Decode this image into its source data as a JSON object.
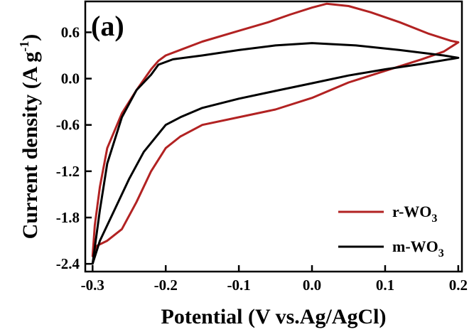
{
  "chart_data": {
    "type": "line",
    "panel_label": "(a)",
    "xlabel": "Potential (V vs.Ag/AgCl)",
    "ylabel": {
      "main": "Current density (A g",
      "superscript": "-1",
      "close": ")"
    },
    "xlim": [
      -0.31,
      0.205
    ],
    "ylim": [
      -2.5,
      1.0
    ],
    "x_ticks": [
      -0.3,
      -0.2,
      -0.1,
      0.0,
      0.1,
      0.2
    ],
    "x_tick_labels": [
      "-0.3",
      "-0.2",
      "-0.1",
      "0.0",
      "0.1",
      "0.2"
    ],
    "y_ticks": [
      0.6,
      0.0,
      -0.6,
      -1.2,
      -1.8,
      -2.4
    ],
    "y_tick_labels": [
      "0.6",
      "0.0",
      "-0.6",
      "-1.2",
      "-1.8",
      "-2.4"
    ],
    "legend_position": "bottom-right",
    "series": [
      {
        "name": "r-WO",
        "name_sub": "3",
        "color": "#b22222",
        "points": [
          [
            -0.3,
            -2.3
          ],
          [
            -0.295,
            -2.17
          ],
          [
            -0.28,
            -2.1
          ],
          [
            -0.26,
            -1.95
          ],
          [
            -0.24,
            -1.6
          ],
          [
            -0.22,
            -1.2
          ],
          [
            -0.2,
            -0.9
          ],
          [
            -0.18,
            -0.75
          ],
          [
            -0.15,
            -0.6
          ],
          [
            -0.1,
            -0.5
          ],
          [
            -0.05,
            -0.4
          ],
          [
            0.0,
            -0.25
          ],
          [
            0.05,
            -0.05
          ],
          [
            0.1,
            0.1
          ],
          [
            0.15,
            0.25
          ],
          [
            0.18,
            0.35
          ],
          [
            0.2,
            0.47
          ],
          [
            0.19,
            0.49
          ],
          [
            0.16,
            0.58
          ],
          [
            0.12,
            0.73
          ],
          [
            0.08,
            0.86
          ],
          [
            0.05,
            0.94
          ],
          [
            0.02,
            0.97
          ],
          [
            0.0,
            0.92
          ],
          [
            -0.03,
            0.83
          ],
          [
            -0.06,
            0.73
          ],
          [
            -0.1,
            0.62
          ],
          [
            -0.15,
            0.48
          ],
          [
            -0.2,
            0.3
          ],
          [
            -0.21,
            0.23
          ],
          [
            -0.22,
            0.12
          ],
          [
            -0.24,
            -0.15
          ],
          [
            -0.26,
            -0.45
          ],
          [
            -0.28,
            -0.9
          ],
          [
            -0.29,
            -1.4
          ],
          [
            -0.297,
            -1.9
          ],
          [
            -0.3,
            -2.3
          ]
        ]
      },
      {
        "name": "m-WO",
        "name_sub": "3",
        "color": "#000000",
        "points": [
          [
            -0.3,
            -2.4
          ],
          [
            -0.29,
            -2.1
          ],
          [
            -0.27,
            -1.7
          ],
          [
            -0.25,
            -1.3
          ],
          [
            -0.23,
            -0.95
          ],
          [
            -0.2,
            -0.6
          ],
          [
            -0.18,
            -0.5
          ],
          [
            -0.15,
            -0.38
          ],
          [
            -0.1,
            -0.26
          ],
          [
            -0.05,
            -0.16
          ],
          [
            0.0,
            -0.06
          ],
          [
            0.05,
            0.04
          ],
          [
            0.1,
            0.12
          ],
          [
            0.15,
            0.19
          ],
          [
            0.2,
            0.27
          ],
          [
            0.18,
            0.3
          ],
          [
            0.12,
            0.37
          ],
          [
            0.06,
            0.43
          ],
          [
            0.0,
            0.46
          ],
          [
            -0.05,
            0.43
          ],
          [
            -0.1,
            0.37
          ],
          [
            -0.15,
            0.3
          ],
          [
            -0.19,
            0.25
          ],
          [
            -0.21,
            0.18
          ],
          [
            -0.22,
            0.05
          ],
          [
            -0.24,
            -0.15
          ],
          [
            -0.26,
            -0.5
          ],
          [
            -0.28,
            -1.1
          ],
          [
            -0.29,
            -1.7
          ],
          [
            -0.3,
            -2.4
          ]
        ]
      }
    ]
  }
}
